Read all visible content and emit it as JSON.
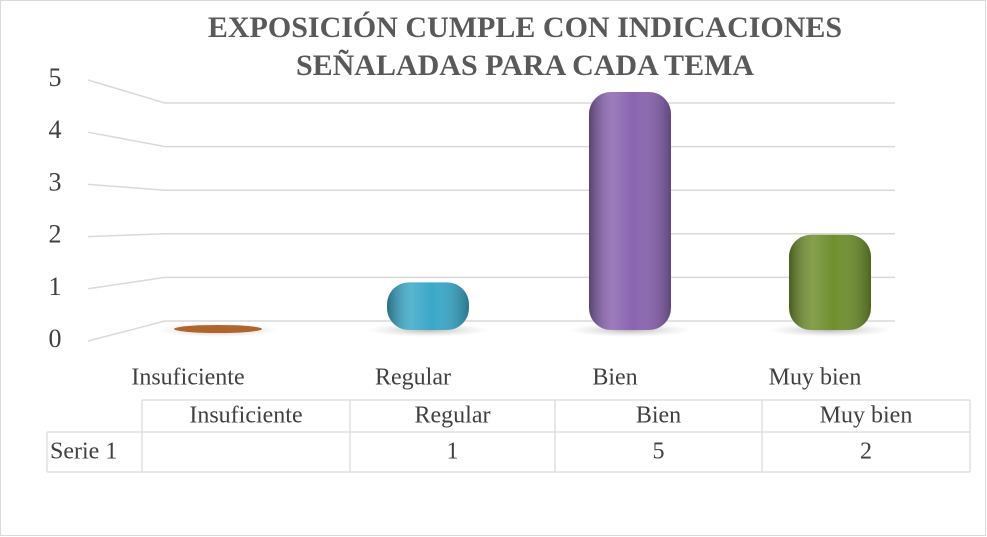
{
  "chart_data": {
    "type": "bar",
    "title": [
      "EXPOSICIÓN CUMPLE CON INDICACIONES",
      "SEÑALADAS PARA CADA TEMA"
    ],
    "categories": [
      "Insuficiente",
      "Regular",
      "Bien",
      "Muy bien"
    ],
    "series": [
      {
        "name": "Serie 1",
        "values": [
          null,
          1,
          5,
          2
        ],
        "colors": [
          "#b0652c",
          "#3aa8c8",
          "#8a64b0",
          "#6f8f2e"
        ]
      }
    ],
    "ylim": [
      0,
      5
    ],
    "yticks": [
      0,
      1,
      2,
      3,
      4,
      5
    ],
    "grid": true,
    "data_table": true
  }
}
